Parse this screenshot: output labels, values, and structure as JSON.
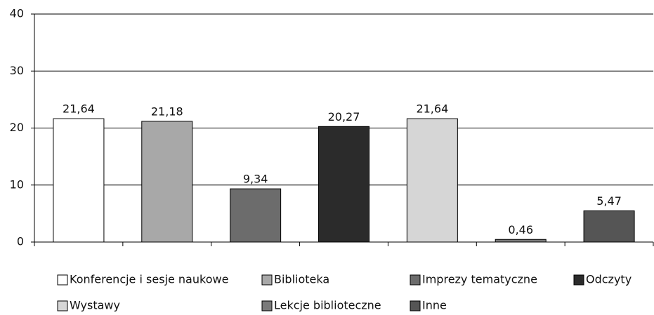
{
  "chart_data": {
    "type": "bar",
    "categories": [
      "Konferencje i sesje naukowe",
      "Biblioteka",
      "Imprezy tematyczne",
      "Odczyty",
      "Wystawy",
      "Lekcje biblioteczne",
      "Inne"
    ],
    "values": [
      21.64,
      21.18,
      9.34,
      20.27,
      21.64,
      0.46,
      5.47
    ],
    "value_labels": [
      "21,64",
      "21,18",
      "9,34",
      "20,27",
      "21,64",
      "0,46",
      "5,47"
    ],
    "colors": [
      "#ffffff",
      "#a8a8a8",
      "#6c6c6c",
      "#2b2b2b",
      "#d6d6d6",
      "#7a7a7a",
      "#555555"
    ],
    "ylim": [
      0,
      40
    ],
    "yticks": [
      0,
      10,
      20,
      30,
      40
    ],
    "grid": true
  }
}
